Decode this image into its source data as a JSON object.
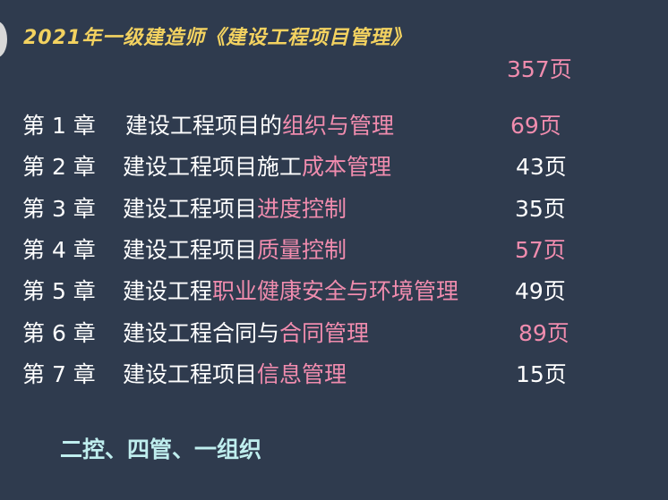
{
  "title": "2021年一级建造师《建设工程项目管理》",
  "total_pages": "357页",
  "colors": {
    "background": "#2f3b4e",
    "title": "#f3d260",
    "highlight": "#f08cae",
    "motto": "#bfeeee"
  },
  "chapters": [
    {
      "chapter": "第 1 章",
      "name_plain": "建设工程项目的",
      "name_highlight": "组织与管理",
      "pages": "69页",
      "pages_highlight": true
    },
    {
      "chapter": "第 2 章",
      "name_plain": "建设工程项目施工",
      "name_highlight": "成本管理",
      "pages": "43页",
      "pages_highlight": false
    },
    {
      "chapter": "第 3 章",
      "name_plain": "建设工程项目",
      "name_highlight": "进度控制",
      "pages": "35页",
      "pages_highlight": false
    },
    {
      "chapter": "第 4 章",
      "name_plain": "建设工程项目",
      "name_highlight": "质量控制",
      "pages": "57页",
      "pages_highlight": true
    },
    {
      "chapter": "第 5 章",
      "name_plain": "建设工程",
      "name_highlight": "职业健康安全与环境管理",
      "pages": "49页",
      "pages_highlight": false
    },
    {
      "chapter": "第 6 章",
      "name_plain": "建设工程合同与",
      "name_highlight": "合同管理",
      "pages": "89页",
      "pages_highlight": true
    },
    {
      "chapter": "第 7 章",
      "name_plain": "建设工程项目",
      "name_highlight": "信息管理",
      "pages": "15页",
      "pages_highlight": false
    }
  ],
  "motto": "二控、四管、一组织"
}
